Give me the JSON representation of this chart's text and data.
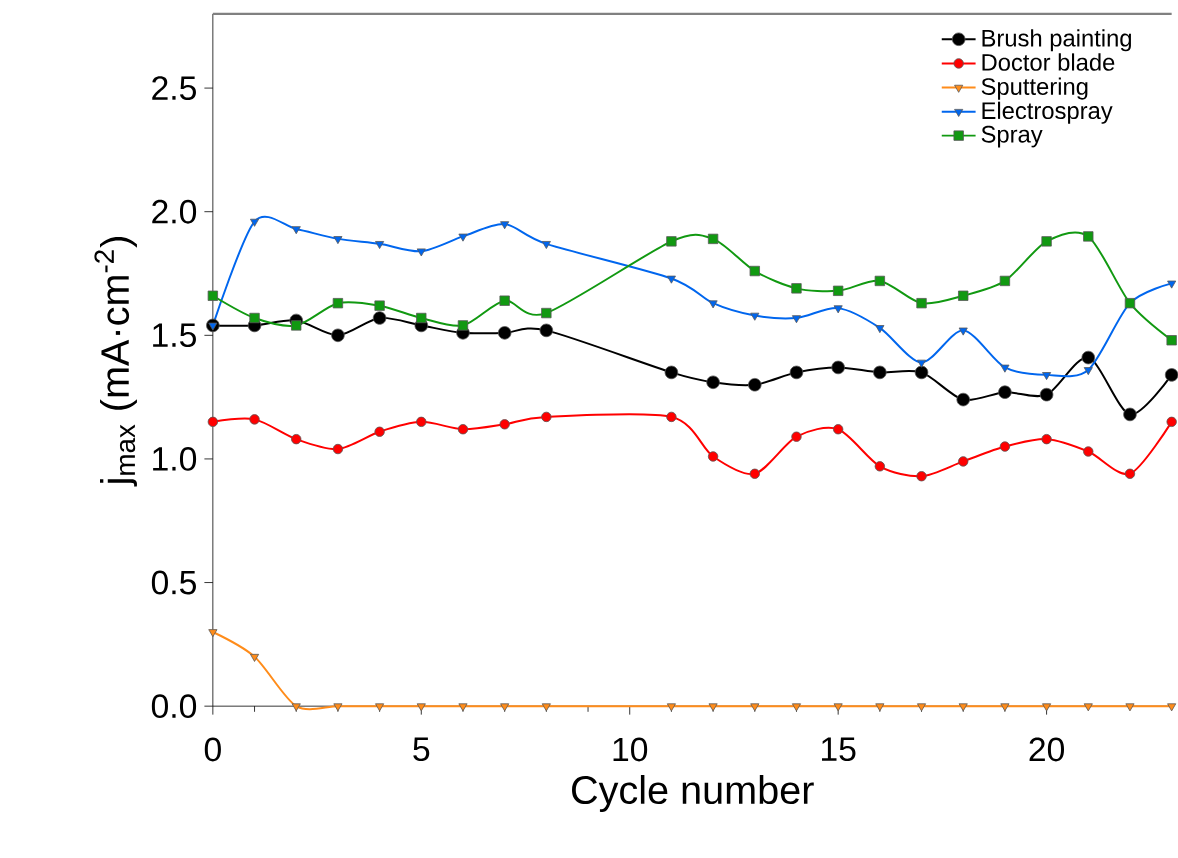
{
  "chart_data": {
    "type": "line",
    "xlabel": "Cycle number",
    "ylabel": "j$_{max}$ (mA·cm$^{-2}$)",
    "x": [
      0,
      1,
      2,
      3,
      4,
      5,
      6,
      7,
      8,
      11,
      12,
      13,
      14,
      15,
      16,
      17,
      18,
      19,
      20,
      21,
      22,
      23
    ],
    "series": [
      {
        "name": "Brush painting",
        "color": "#000000",
        "marker": "circle",
        "values": [
          1.54,
          1.54,
          1.56,
          1.5,
          1.57,
          1.54,
          1.51,
          1.51,
          1.52,
          1.35,
          1.31,
          1.3,
          1.35,
          1.37,
          1.35,
          1.35,
          1.24,
          1.27,
          1.26,
          1.41,
          1.18,
          1.34
        ]
      },
      {
        "name": "Doctor blade",
        "color": "#ff0000",
        "marker": "circle",
        "values": [
          1.15,
          1.16,
          1.08,
          1.04,
          1.11,
          1.15,
          1.12,
          1.14,
          1.17,
          1.17,
          1.01,
          0.94,
          1.09,
          1.12,
          0.97,
          0.93,
          0.99,
          1.05,
          1.08,
          1.03,
          0.94,
          1.15
        ]
      },
      {
        "name": "Sputtering",
        "color": "#ff8c1a",
        "marker": "triangle",
        "values": [
          0.3,
          0.2,
          0,
          0,
          0,
          0,
          0,
          0,
          0,
          0,
          0,
          0,
          0,
          0,
          0,
          0,
          0,
          0,
          0,
          0,
          0,
          0
        ]
      },
      {
        "name": "Electrospray",
        "color": "#0066ee",
        "marker": "triangle",
        "values": [
          1.54,
          1.96,
          1.93,
          1.89,
          1.87,
          1.84,
          1.9,
          1.95,
          1.87,
          1.73,
          1.63,
          1.58,
          1.57,
          1.61,
          1.53,
          1.39,
          1.52,
          1.37,
          1.34,
          1.36,
          1.63,
          1.71
        ]
      },
      {
        "name": "Spray",
        "color": "#119911",
        "marker": "square",
        "values": [
          1.66,
          1.57,
          1.54,
          1.63,
          1.62,
          1.57,
          1.54,
          1.64,
          1.59,
          1.88,
          1.89,
          1.76,
          1.69,
          1.68,
          1.72,
          1.63,
          1.66,
          1.72,
          1.88,
          1.9,
          1.63,
          1.48
        ]
      }
    ],
    "xlim": [
      0,
      23
    ],
    "ylim": [
      0,
      2.8
    ],
    "xticks": [
      0,
      5,
      10,
      15,
      20
    ],
    "yticks": [
      {
        "value": 0,
        "label": "0.0"
      },
      0.5,
      {
        "value": 1,
        "label": "1.0"
      },
      1.5,
      {
        "value": 2,
        "label": "2.0"
      },
      2.5
    ],
    "legend": "top right",
    "grid": false,
    "line_style": "solid"
  }
}
